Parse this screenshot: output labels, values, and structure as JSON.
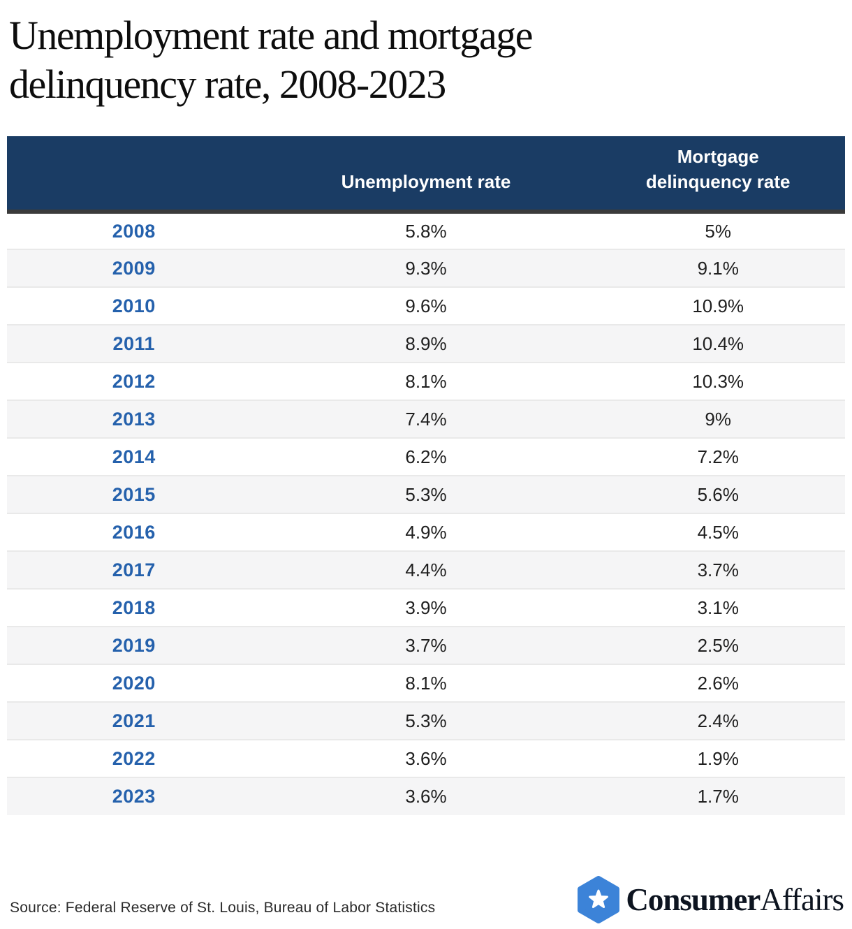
{
  "title": "Unemployment rate and mortgage delinquency rate, 2008-2023",
  "table": {
    "columns": {
      "year": "",
      "unemployment": "Unemployment rate",
      "mortgage": "Mortgage\ndelinquency rate"
    },
    "rows": [
      {
        "year": "2008",
        "unemployment": "5.8%",
        "delinquency": "5%"
      },
      {
        "year": "2009",
        "unemployment": "9.3%",
        "delinquency": "9.1%"
      },
      {
        "year": "2010",
        "unemployment": "9.6%",
        "delinquency": "10.9%"
      },
      {
        "year": "2011",
        "unemployment": "8.9%",
        "delinquency": "10.4%"
      },
      {
        "year": "2012",
        "unemployment": "8.1%",
        "delinquency": "10.3%"
      },
      {
        "year": "2013",
        "unemployment": "7.4%",
        "delinquency": "9%"
      },
      {
        "year": "2014",
        "unemployment": "6.2%",
        "delinquency": "7.2%"
      },
      {
        "year": "2015",
        "unemployment": "5.3%",
        "delinquency": "5.6%"
      },
      {
        "year": "2016",
        "unemployment": "4.9%",
        "delinquency": "4.5%"
      },
      {
        "year": "2017",
        "unemployment": "4.4%",
        "delinquency": "3.7%"
      },
      {
        "year": "2018",
        "unemployment": "3.9%",
        "delinquency": "3.1%"
      },
      {
        "year": "2019",
        "unemployment": "3.7%",
        "delinquency": "2.5%"
      },
      {
        "year": "2020",
        "unemployment": "8.1%",
        "delinquency": "2.6%"
      },
      {
        "year": "2021",
        "unemployment": "5.3%",
        "delinquency": "2.4%"
      },
      {
        "year": "2022",
        "unemployment": "3.6%",
        "delinquency": "1.9%"
      },
      {
        "year": "2023",
        "unemployment": "3.6%",
        "delinquency": "1.7%"
      }
    ]
  },
  "source": "Source: Federal Reserve of St. Louis, Bureau of Labor Statistics",
  "logo": {
    "bold": "Consumer",
    "light": "Affairs",
    "badge_icon": "star-badge-icon"
  },
  "colors": {
    "header_bg": "#1a3c64",
    "header_border": "#3b3b3b",
    "year_text": "#2561ac",
    "row_alt_bg": "#f5f5f6",
    "row_divider": "#e9e9e9",
    "value_text": "#1f1f1f",
    "logo_blue": "#3c83d8",
    "logo_text": "#0d1420"
  },
  "chart_data": {
    "type": "table",
    "title": "Unemployment rate and mortgage delinquency rate, 2008-2023",
    "categories": [
      "2008",
      "2009",
      "2010",
      "2011",
      "2012",
      "2013",
      "2014",
      "2015",
      "2016",
      "2017",
      "2018",
      "2019",
      "2020",
      "2021",
      "2022",
      "2023"
    ],
    "series": [
      {
        "name": "Unemployment rate",
        "values": [
          5.8,
          9.3,
          9.6,
          8.9,
          8.1,
          7.4,
          6.2,
          5.3,
          4.9,
          4.4,
          3.9,
          3.7,
          8.1,
          5.3,
          3.6,
          3.6
        ]
      },
      {
        "name": "Mortgage delinquency rate",
        "values": [
          5,
          9.1,
          10.9,
          10.4,
          10.3,
          9,
          7.2,
          5.6,
          4.5,
          3.7,
          3.1,
          2.5,
          2.6,
          2.4,
          1.9,
          1.7
        ]
      }
    ],
    "unit": "%",
    "source": "Federal Reserve of St. Louis, Bureau of Labor Statistics"
  }
}
